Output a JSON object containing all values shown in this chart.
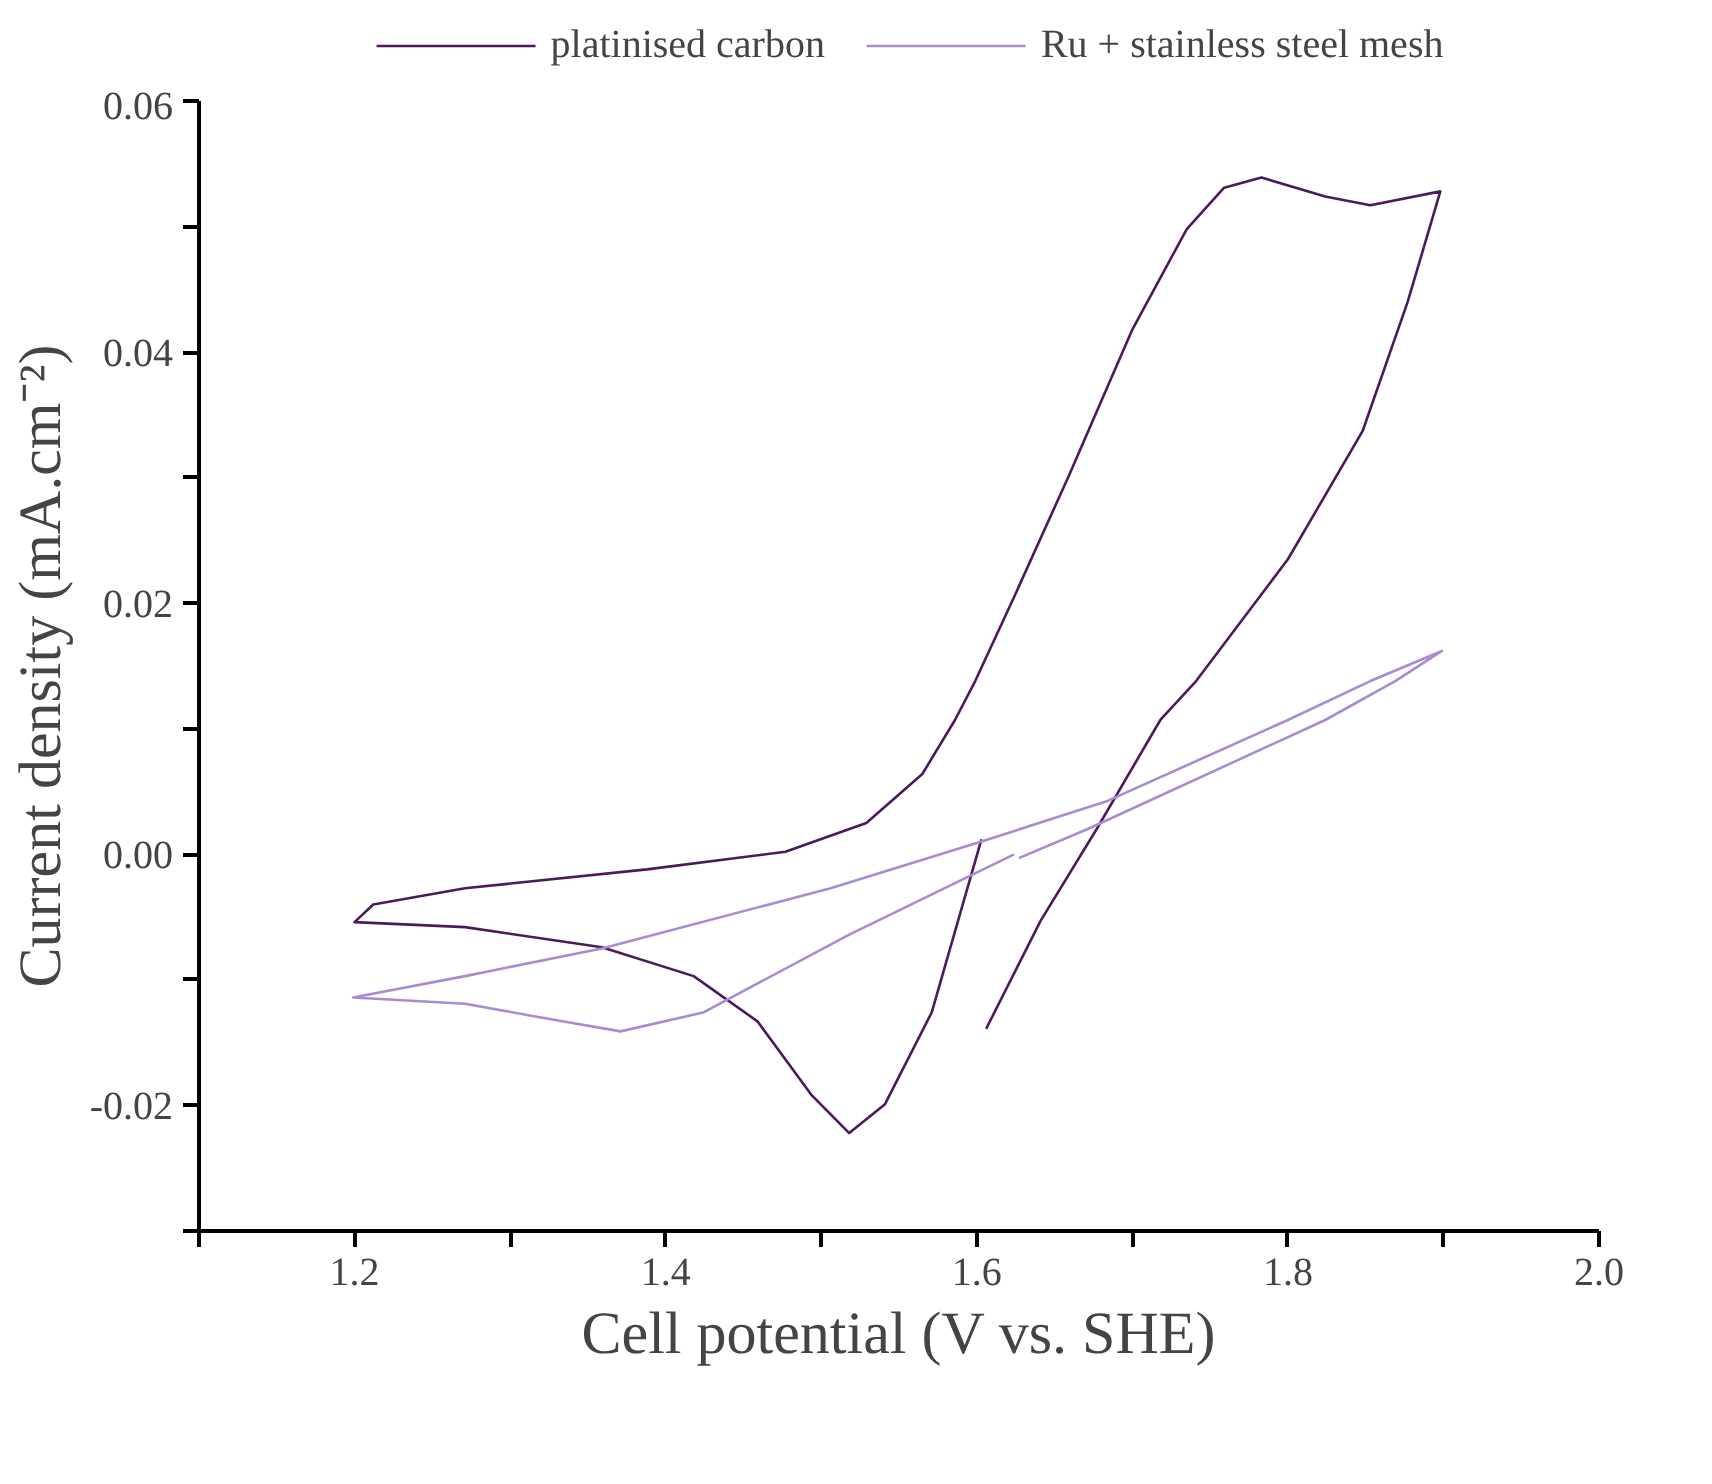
{
  "chart_data": {
    "type": "line",
    "xlabel": "Cell potential (V vs. SHE)",
    "ylabel": "Current density (mA.cm⁻²)",
    "xlim": [
      1.1,
      2.0
    ],
    "ylim": [
      -0.03,
      0.06
    ],
    "xticks": [
      {
        "value": 1.1,
        "label": null
      },
      {
        "value": 1.2,
        "label": "1.2"
      },
      {
        "value": 1.3,
        "label": null
      },
      {
        "value": 1.4,
        "label": "1.4"
      },
      {
        "value": 1.5,
        "label": null
      },
      {
        "value": 1.6,
        "label": "1.6"
      },
      {
        "value": 1.7,
        "label": null
      },
      {
        "value": 1.8,
        "label": "1.8"
      },
      {
        "value": 1.9,
        "label": null
      },
      {
        "value": 2.0,
        "label": "2.0"
      }
    ],
    "yticks": [
      {
        "value": -0.03,
        "label": null
      },
      {
        "value": -0.02,
        "label": "-0.02"
      },
      {
        "value": -0.01,
        "label": null
      },
      {
        "value": 0,
        "label": "0.00"
      },
      {
        "value": 0.01,
        "label": null
      },
      {
        "value": 0.02,
        "label": "0.02"
      },
      {
        "value": 0.03,
        "label": null
      },
      {
        "value": 0.04,
        "label": "0.04"
      },
      {
        "value": 0.05,
        "label": null
      },
      {
        "value": 0.06,
        "label": "0.06"
      }
    ],
    "grid": false,
    "legend": "top",
    "marker": "none",
    "line_style": "solid",
    "series": [
      {
        "name": "platinised carbon",
        "color": "#4b1a5c",
        "x": [
          1.606,
          1.641,
          1.677,
          1.718,
          1.741,
          1.8,
          1.848,
          1.877,
          1.898,
          1.853,
          1.824,
          1.783,
          1.759,
          1.735,
          1.7,
          1.659,
          1.624,
          1.599,
          1.586,
          1.565,
          1.529,
          1.477,
          1.388,
          1.271,
          1.212,
          1.2,
          1.271,
          1.359,
          1.418,
          1.459,
          1.494,
          1.518,
          1.541,
          1.571,
          1.603
        ],
        "values": [
          -0.0139,
          -0.0053,
          0.002,
          0.0107,
          0.0138,
          0.0235,
          0.0337,
          0.044,
          0.0528,
          0.0517,
          0.0524,
          0.0539,
          0.0531,
          0.0498,
          0.0418,
          0.0301,
          0.0205,
          0.0138,
          0.0107,
          0.0064,
          0.0025,
          0.0002,
          -0.0012,
          -0.0027,
          -0.004,
          -0.0054,
          -0.0058,
          -0.0074,
          -0.0097,
          -0.0133,
          -0.0192,
          -0.0222,
          -0.0199,
          -0.0126,
          0.0012
        ]
      },
      {
        "name": "Ru + stainless steel mesh",
        "color": "#a98bd1",
        "x": [
          1.627,
          1.671,
          1.824,
          1.869,
          1.899,
          1.853,
          1.8,
          1.683,
          1.6,
          1.506,
          1.359,
          1.271,
          1.199,
          1.271,
          1.329,
          1.371,
          1.424,
          1.518,
          1.624
        ],
        "values": [
          -0.0003,
          0.002,
          0.0107,
          0.0138,
          0.0162,
          0.0138,
          0.0107,
          0.0042,
          0.0009,
          -0.0027,
          -0.0075,
          -0.0097,
          -0.0114,
          -0.0119,
          -0.0132,
          -0.0141,
          -0.0126,
          -0.0064,
          0.0
        ]
      }
    ]
  }
}
